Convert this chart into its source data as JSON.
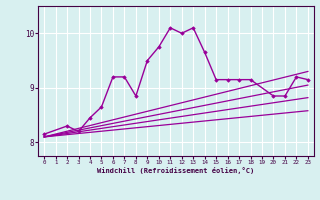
{
  "xlabel": "Windchill (Refroidissement éolien,°C)",
  "ylabel": "",
  "bg_color": "#d8f0f0",
  "grid_color": "#ffffff",
  "line_color": "#990099",
  "xlim": [
    -0.5,
    23.5
  ],
  "ylim": [
    7.75,
    10.5
  ],
  "xticks": [
    0,
    1,
    2,
    3,
    4,
    5,
    6,
    7,
    8,
    9,
    10,
    11,
    12,
    13,
    14,
    15,
    16,
    17,
    18,
    19,
    20,
    21,
    22,
    23
  ],
  "yticks": [
    8,
    9,
    10
  ],
  "series": [
    {
      "x": [
        0,
        2,
        3,
        4,
        5,
        6,
        7,
        8,
        9,
        10,
        11,
        12,
        13,
        14,
        15,
        16,
        17,
        18,
        20,
        21,
        22,
        23
      ],
      "y": [
        8.15,
        8.3,
        8.2,
        8.45,
        8.65,
        9.2,
        9.2,
        8.85,
        9.5,
        9.75,
        10.1,
        10.0,
        10.1,
        9.65,
        9.15,
        9.15,
        9.15,
        9.15,
        8.85,
        8.85,
        9.2,
        9.15
      ],
      "marker": true,
      "lw": 1.0
    },
    {
      "x": [
        0,
        23
      ],
      "y": [
        8.1,
        9.3
      ],
      "marker": false,
      "lw": 0.9
    },
    {
      "x": [
        0,
        23
      ],
      "y": [
        8.1,
        9.05
      ],
      "marker": false,
      "lw": 0.9
    },
    {
      "x": [
        0,
        23
      ],
      "y": [
        8.1,
        8.82
      ],
      "marker": false,
      "lw": 0.9
    },
    {
      "x": [
        0,
        23
      ],
      "y": [
        8.1,
        8.58
      ],
      "marker": false,
      "lw": 0.9
    }
  ]
}
